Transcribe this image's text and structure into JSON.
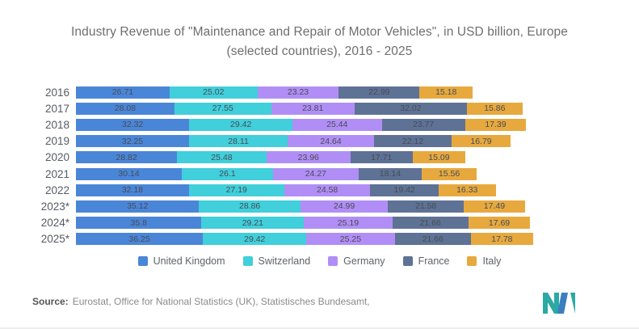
{
  "title": {
    "line1": "Industry Revenue of \"Maintenance and Repair of Motor Vehicles\", in USD billion, Europe",
    "line2": "(selected countries), 2016 - 2025"
  },
  "chart_data": {
    "type": "bar",
    "orientation": "horizontal",
    "stacked": true,
    "title": "Industry Revenue of \"Maintenance and Repair of Motor Vehicles\", in USD billion, Europe (selected countries), 2016 - 2025",
    "categories": [
      "2016",
      "2017",
      "2018",
      "2019",
      "2020",
      "2021",
      "2022",
      "2023*",
      "2024*",
      "2025*"
    ],
    "series": [
      {
        "name": "United Kingdom",
        "color": "#4a86d8",
        "values": [
          26.71,
          28.08,
          32.32,
          32.25,
          28.82,
          30.14,
          32.18,
          35.12,
          35.8,
          36.25
        ]
      },
      {
        "name": "Switzerland",
        "color": "#40cfdb",
        "values": [
          25.02,
          27.55,
          29.42,
          28.11,
          25.48,
          26.1,
          27.19,
          28.86,
          29.21,
          29.42
        ]
      },
      {
        "name": "Germany",
        "color": "#b18ef6",
        "values": [
          23.23,
          23.81,
          25.44,
          24.64,
          23.96,
          24.27,
          24.58,
          24.99,
          25.19,
          25.25
        ]
      },
      {
        "name": "France",
        "color": "#5e7295",
        "values": [
          22.99,
          32.02,
          23.77,
          22.12,
          17.71,
          18.14,
          19.42,
          21.58,
          21.66,
          21.66
        ]
      },
      {
        "name": "Italy",
        "color": "#e7a93e",
        "values": [
          15.18,
          15.86,
          17.39,
          16.79,
          15.09,
          15.56,
          16.33,
          17.49,
          17.69,
          17.78
        ]
      }
    ],
    "xmax_total": 130.36,
    "value_labels": true,
    "grid": false,
    "legend_position": "bottom"
  },
  "source": {
    "label": "Source:",
    "text": "Eurostat, Office for National Statistics (UK), Statistisches Bundesamt,"
  },
  "logo": {
    "name": "mordor-intelligence-logo",
    "teal": "#2ba9a4",
    "blue": "#3b7ec0"
  }
}
